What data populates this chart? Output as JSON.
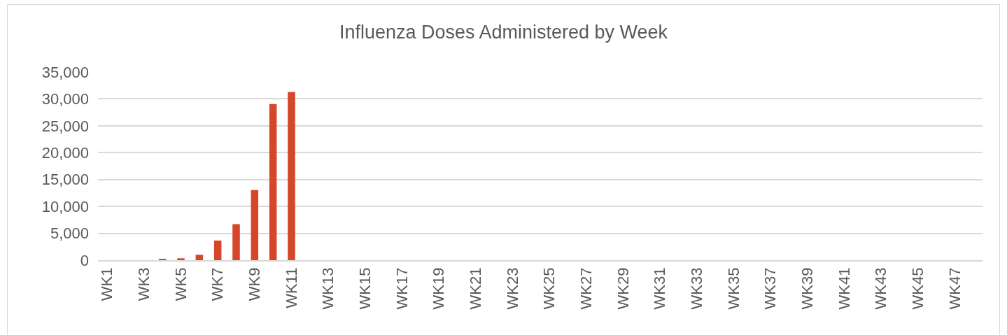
{
  "chart_data": {
    "type": "bar",
    "title": "Influenza Doses Administered by Week",
    "categories": [
      "WK1",
      null,
      "WK3",
      null,
      "WK5",
      null,
      "WK7",
      null,
      "WK9",
      null,
      "WK11",
      null,
      "WK13",
      null,
      "WK15",
      null,
      "WK17",
      null,
      "WK19",
      null,
      "WK21",
      null,
      "WK23",
      null,
      "WK25",
      null,
      "WK27",
      null,
      "WK29",
      null,
      "WK31",
      null,
      "WK33",
      null,
      "WK35",
      null,
      "WK37",
      null,
      "WK39",
      null,
      "WK41",
      null,
      "WK43",
      null,
      "WK45",
      null,
      "WK47",
      null
    ],
    "values": [
      0,
      0,
      0,
      200,
      350,
      1000,
      3650,
      6700,
      13050,
      29050,
      31300,
      null,
      null,
      null,
      null,
      null,
      null,
      null,
      null,
      null,
      null,
      null,
      null,
      null,
      null,
      null,
      null,
      null,
      null,
      null,
      null,
      null,
      null,
      null,
      null,
      null,
      null,
      null,
      null,
      null,
      null,
      null,
      null,
      null,
      null,
      null,
      null,
      null
    ],
    "color": "#d5462a",
    "ylim": [
      0,
      35000
    ],
    "yticks": [
      {
        "value": 0,
        "label": "0"
      },
      {
        "value": 5000,
        "label": "5,000"
      },
      {
        "value": 10000,
        "label": "10,000"
      },
      {
        "value": 15000,
        "label": "15,000"
      },
      {
        "value": 20000,
        "label": "20,000"
      },
      {
        "value": 25000,
        "label": "25,000"
      },
      {
        "value": 30000,
        "label": "30,000"
      },
      {
        "value": 35000,
        "label": "35,000"
      }
    ],
    "grid": "y"
  }
}
